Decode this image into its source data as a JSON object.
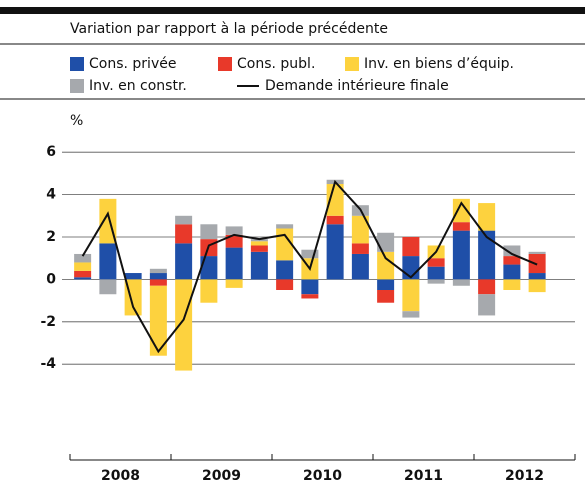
{
  "chart_data": {
    "type": "stacked_bar_line",
    "subtitle": "Variation par rapport à la période précédente",
    "y_unit": "%",
    "categories": [
      null,
      null,
      null,
      null,
      null,
      null,
      null,
      null,
      null,
      null,
      null,
      null,
      null,
      null,
      null,
      null,
      null,
      null,
      null
    ],
    "x_groups": [
      "2008",
      "2009",
      "2010",
      "2011",
      "2012"
    ],
    "ylim": [
      -5.5,
      7
    ],
    "yticks": [
      -4,
      -2,
      0,
      2,
      4,
      6
    ],
    "grid": true,
    "series": [
      {
        "name": "Cons. privée",
        "color": "#1f4fa8",
        "values": [
          0.1,
          1.7,
          0.3,
          0.3,
          1.7,
          1.1,
          1.5,
          1.3,
          0.9,
          -0.7,
          2.6,
          1.2,
          -0.5,
          1.1,
          0.6,
          2.3,
          2.3,
          0.7,
          0.3
        ]
      },
      {
        "name": "Cons. publ.",
        "color": "#e8392a",
        "values": [
          0.3,
          0,
          0,
          -0.3,
          0.9,
          0.8,
          0.6,
          0.3,
          -0.5,
          -0.2,
          0.4,
          0.5,
          -0.6,
          0.9,
          0.4,
          0.4,
          -0.7,
          0.4,
          0.9
        ]
      },
      {
        "name": "Inv. en biens d’équip.",
        "color": "#fdd23e",
        "values": [
          0.4,
          2.1,
          -1.7,
          -3.3,
          -4.3,
          -1.1,
          -0.4,
          0.2,
          1.5,
          1.0,
          1.5,
          1.3,
          1.3,
          -1.5,
          0.6,
          1.1,
          1.3,
          -0.5,
          -0.6
        ]
      },
      {
        "name": "Inv. en constr.",
        "color": "#a6a9ad",
        "values": [
          0.4,
          -0.7,
          0,
          0.2,
          0.4,
          0.7,
          0.4,
          0.1,
          0.2,
          0.4,
          0.2,
          0.5,
          0.9,
          -0.3,
          -0.2,
          -0.3,
          -1.0,
          0.5,
          0.1
        ]
      },
      {
        "name": "Demande intérieure finale",
        "color": "#111111",
        "type": "line",
        "values": [
          1.1,
          3.1,
          -1.3,
          -3.4,
          -1.9,
          1.6,
          2.1,
          1.9,
          2.1,
          0.5,
          4.6,
          3.3,
          1.0,
          0.1,
          1.3,
          3.6,
          2.0,
          1.2,
          0.7
        ]
      }
    ]
  }
}
